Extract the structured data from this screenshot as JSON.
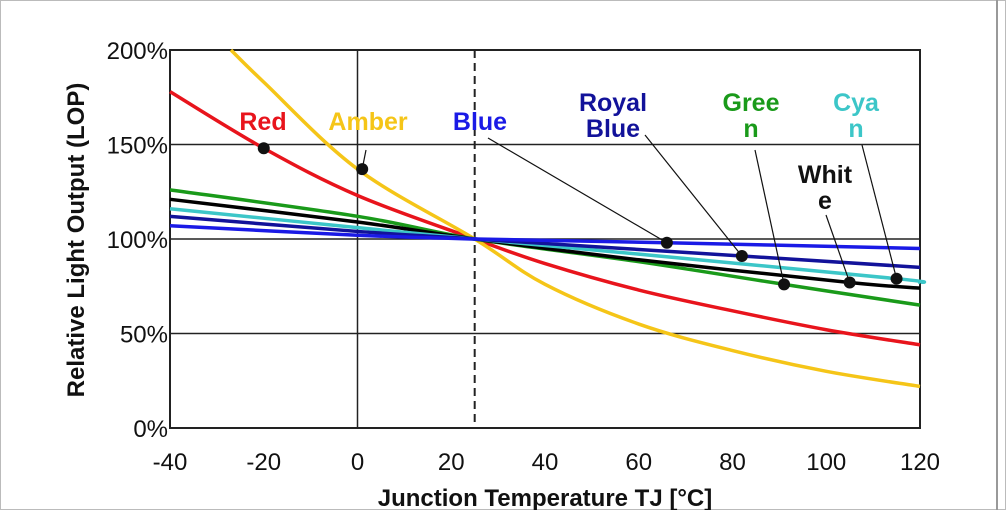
{
  "chart_data": {
    "type": "line",
    "title": "",
    "xlabel": "Junction Temperature TJ [°C]",
    "ylabel": "Relative Light Output (LOP)",
    "xlim": [
      -40,
      120
    ],
    "ylim": [
      0,
      200
    ],
    "x_ticks": [
      "-40",
      "-20",
      "0",
      "20",
      "40",
      "60",
      "80",
      "100",
      "120"
    ],
    "y_ticks": [
      "0%",
      "50%",
      "100%",
      "150%",
      "200%"
    ],
    "grid": "horizontal lines at 50%, 100%, 150%, 200%; vertical solid line at 0; dashed vertical at 25",
    "reference_x": 25,
    "series": [
      {
        "name": "Red",
        "label_lines": [
          "Red"
        ],
        "color": "#e8141c",
        "x": [
          -40,
          -20,
          0,
          25,
          40,
          60,
          80,
          100,
          120
        ],
        "y": [
          178,
          148,
          123,
          100,
          87,
          73,
          62,
          52,
          44
        ],
        "marker": [
          -20,
          148
        ]
      },
      {
        "name": "Amber",
        "label_lines": [
          "Amber"
        ],
        "color": "#f5c518",
        "x": [
          -27,
          -20,
          0,
          25,
          40,
          60,
          80,
          100,
          120
        ],
        "y": [
          200,
          183,
          137,
          100,
          76,
          55,
          41,
          30,
          22
        ],
        "marker": [
          1,
          137
        ]
      },
      {
        "name": "Blue",
        "label_lines": [
          "Blue"
        ],
        "color": "#1a1ae6",
        "x": [
          -40,
          0,
          25,
          66,
          120
        ],
        "y": [
          107,
          102,
          100,
          98,
          95
        ],
        "marker": [
          66,
          98
        ]
      },
      {
        "name": "Royal Blue",
        "label_lines": [
          "Royal",
          "Blue"
        ],
        "color": "#12129a",
        "x": [
          -40,
          0,
          25,
          82,
          120
        ],
        "y": [
          112,
          104,
          100,
          91,
          85
        ],
        "marker": [
          82,
          91
        ]
      },
      {
        "name": "Green",
        "label_lines": [
          "Gree",
          "n"
        ],
        "color": "#1a9a1a",
        "x": [
          -40,
          0,
          25,
          60,
          91,
          120
        ],
        "y": [
          126,
          112,
          100,
          88,
          76,
          65
        ],
        "marker": [
          91,
          76
        ]
      },
      {
        "name": "White",
        "label_lines": [
          "Whit",
          "e"
        ],
        "color": "#000000",
        "x": [
          -40,
          0,
          25,
          60,
          105,
          120
        ],
        "y": [
          121,
          109,
          100,
          89,
          77,
          74
        ],
        "marker": [
          105,
          77
        ]
      },
      {
        "name": "Cyan",
        "label_lines": [
          "Cya",
          "n"
        ],
        "color": "#3cc6c8",
        "x": [
          -40,
          0,
          25,
          60,
          115,
          120
        ],
        "y": [
          116,
          106,
          100,
          92,
          79,
          77
        ],
        "marker": [
          115,
          79
        ]
      }
    ]
  }
}
